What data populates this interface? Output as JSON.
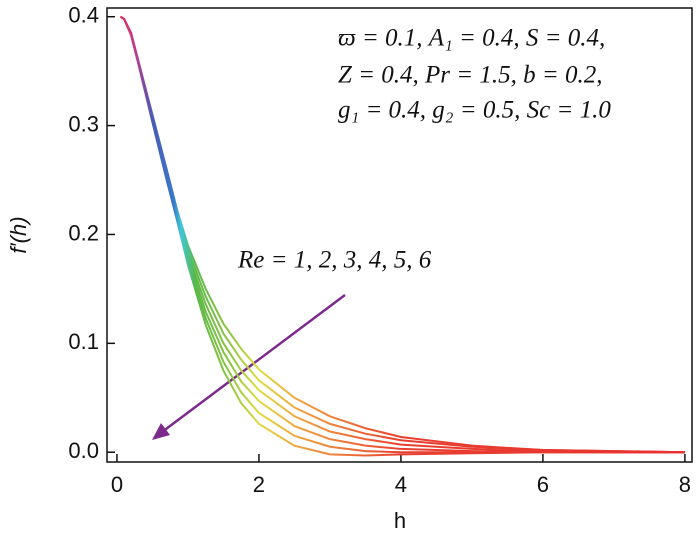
{
  "chart_data": {
    "type": "line",
    "xlabel": "h",
    "ylabel": "f′(h)",
    "annotations": [
      "ϖ = 0.1, A₁ = 0.4, S = 0.4,",
      "Z = 0.4, Pr = 1.5, b = 0.2,",
      "g₁ = 0.4, g₂ = 0.5, Sc = 1.0",
      "Re = 1, 2, 3, 4, 5, 6"
    ],
    "x": [
      0.05,
      0.1,
      0.2,
      0.3,
      0.5,
      0.7,
      0.85,
      1,
      1.25,
      1.5,
      1.75,
      2,
      2.5,
      3,
      3.5,
      4,
      5,
      6,
      7,
      8
    ],
    "series": [
      {
        "values": [
          0.4,
          0.398,
          0.385,
          0.36,
          0.31,
          0.26,
          0.222,
          0.19,
          0.15,
          0.118,
          0.095,
          0.076,
          0.05,
          0.033,
          0.022,
          0.014,
          0.006,
          0.002,
          0.001,
          0
        ]
      },
      {
        "values": [
          0.4,
          0.398,
          0.385,
          0.359,
          0.309,
          0.258,
          0.22,
          0.186,
          0.143,
          0.109,
          0.085,
          0.066,
          0.041,
          0.026,
          0.017,
          0.011,
          0.005,
          0.002,
          0.001,
          0
        ]
      },
      {
        "values": [
          0.4,
          0.398,
          0.384,
          0.359,
          0.307,
          0.256,
          0.218,
          0.182,
          0.136,
          0.1,
          0.075,
          0.057,
          0.033,
          0.019,
          0.012,
          0.007,
          0.003,
          0.001,
          0,
          0
        ]
      },
      {
        "values": [
          0.4,
          0.398,
          0.384,
          0.358,
          0.306,
          0.254,
          0.216,
          0.179,
          0.129,
          0.092,
          0.065,
          0.047,
          0.024,
          0.012,
          0.006,
          0.003,
          0.001,
          0,
          0,
          0
        ]
      },
      {
        "values": [
          0.4,
          0.398,
          0.383,
          0.358,
          0.304,
          0.252,
          0.214,
          0.175,
          0.123,
          0.083,
          0.055,
          0.036,
          0.015,
          0.005,
          0.001,
          0,
          0,
          0,
          0,
          0
        ]
      },
      {
        "values": [
          0.4,
          0.398,
          0.383,
          0.357,
          0.303,
          0.25,
          0.212,
          0.172,
          0.117,
          0.075,
          0.045,
          0.026,
          0.006,
          -0.002,
          -0.003,
          -0.002,
          -0.001,
          0,
          0,
          0
        ]
      }
    ],
    "color_stops": [
      {
        "x": 0,
        "color": "#e8304a"
      },
      {
        "x": 0.25,
        "color": "#c03a8c"
      },
      {
        "x": 0.5,
        "color": "#4a5bb5"
      },
      {
        "x": 0.8,
        "color": "#3a78c8"
      },
      {
        "x": 0.9,
        "color": "#40c8d8"
      },
      {
        "x": 1.1,
        "color": "#5ab84a"
      },
      {
        "x": 1.6,
        "color": "#8ec63f"
      },
      {
        "x": 2.0,
        "color": "#e0dc40"
      },
      {
        "x": 2.6,
        "color": "#f0a040"
      },
      {
        "x": 4,
        "color": "#e84030"
      },
      {
        "x": 8,
        "color": "#e83030"
      }
    ],
    "xlim": [
      -0.14,
      8.1
    ],
    "ylim": [
      -0.009,
      0.408
    ],
    "xticks": [
      0,
      2,
      4,
      6,
      8
    ],
    "yticks": [
      {
        "value": 0,
        "label": "0.0"
      },
      0.1,
      0.2,
      0.3,
      0.4
    ]
  }
}
